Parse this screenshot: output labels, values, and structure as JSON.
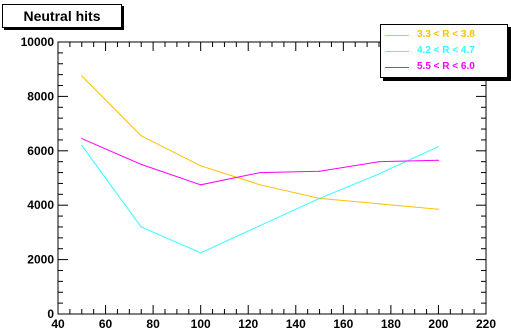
{
  "title": "Neutral hits",
  "chart_data": {
    "type": "line",
    "title": "Neutral hits",
    "xlabel": "",
    "ylabel": "",
    "xlim": [
      40,
      220
    ],
    "ylim": [
      0,
      10000
    ],
    "x_ticks": [
      40,
      60,
      80,
      100,
      120,
      140,
      160,
      180,
      200,
      220
    ],
    "y_ticks": [
      0,
      2000,
      4000,
      6000,
      8000,
      10000
    ],
    "grid": false,
    "legend_position": "top-right",
    "series": [
      {
        "name": "3.3 < R < 3.8",
        "color": "#ffc000",
        "x": [
          50,
          75,
          100,
          125,
          150,
          175,
          200
        ],
        "values": [
          8750,
          6550,
          5450,
          4750,
          4250,
          4050,
          3850
        ]
      },
      {
        "name": "4.2 < R < 4.7",
        "color": "#33ffff",
        "x": [
          50,
          75,
          100,
          125,
          150,
          175,
          200
        ],
        "values": [
          6200,
          3200,
          2250,
          3250,
          4250,
          5150,
          6150
        ]
      },
      {
        "name": "5.5 < R < 6.0",
        "color": "#ff00ff",
        "x": [
          50,
          75,
          100,
          125,
          150,
          175,
          200
        ],
        "values": [
          6450,
          5500,
          4750,
          5200,
          5250,
          5600,
          5650
        ]
      }
    ]
  }
}
